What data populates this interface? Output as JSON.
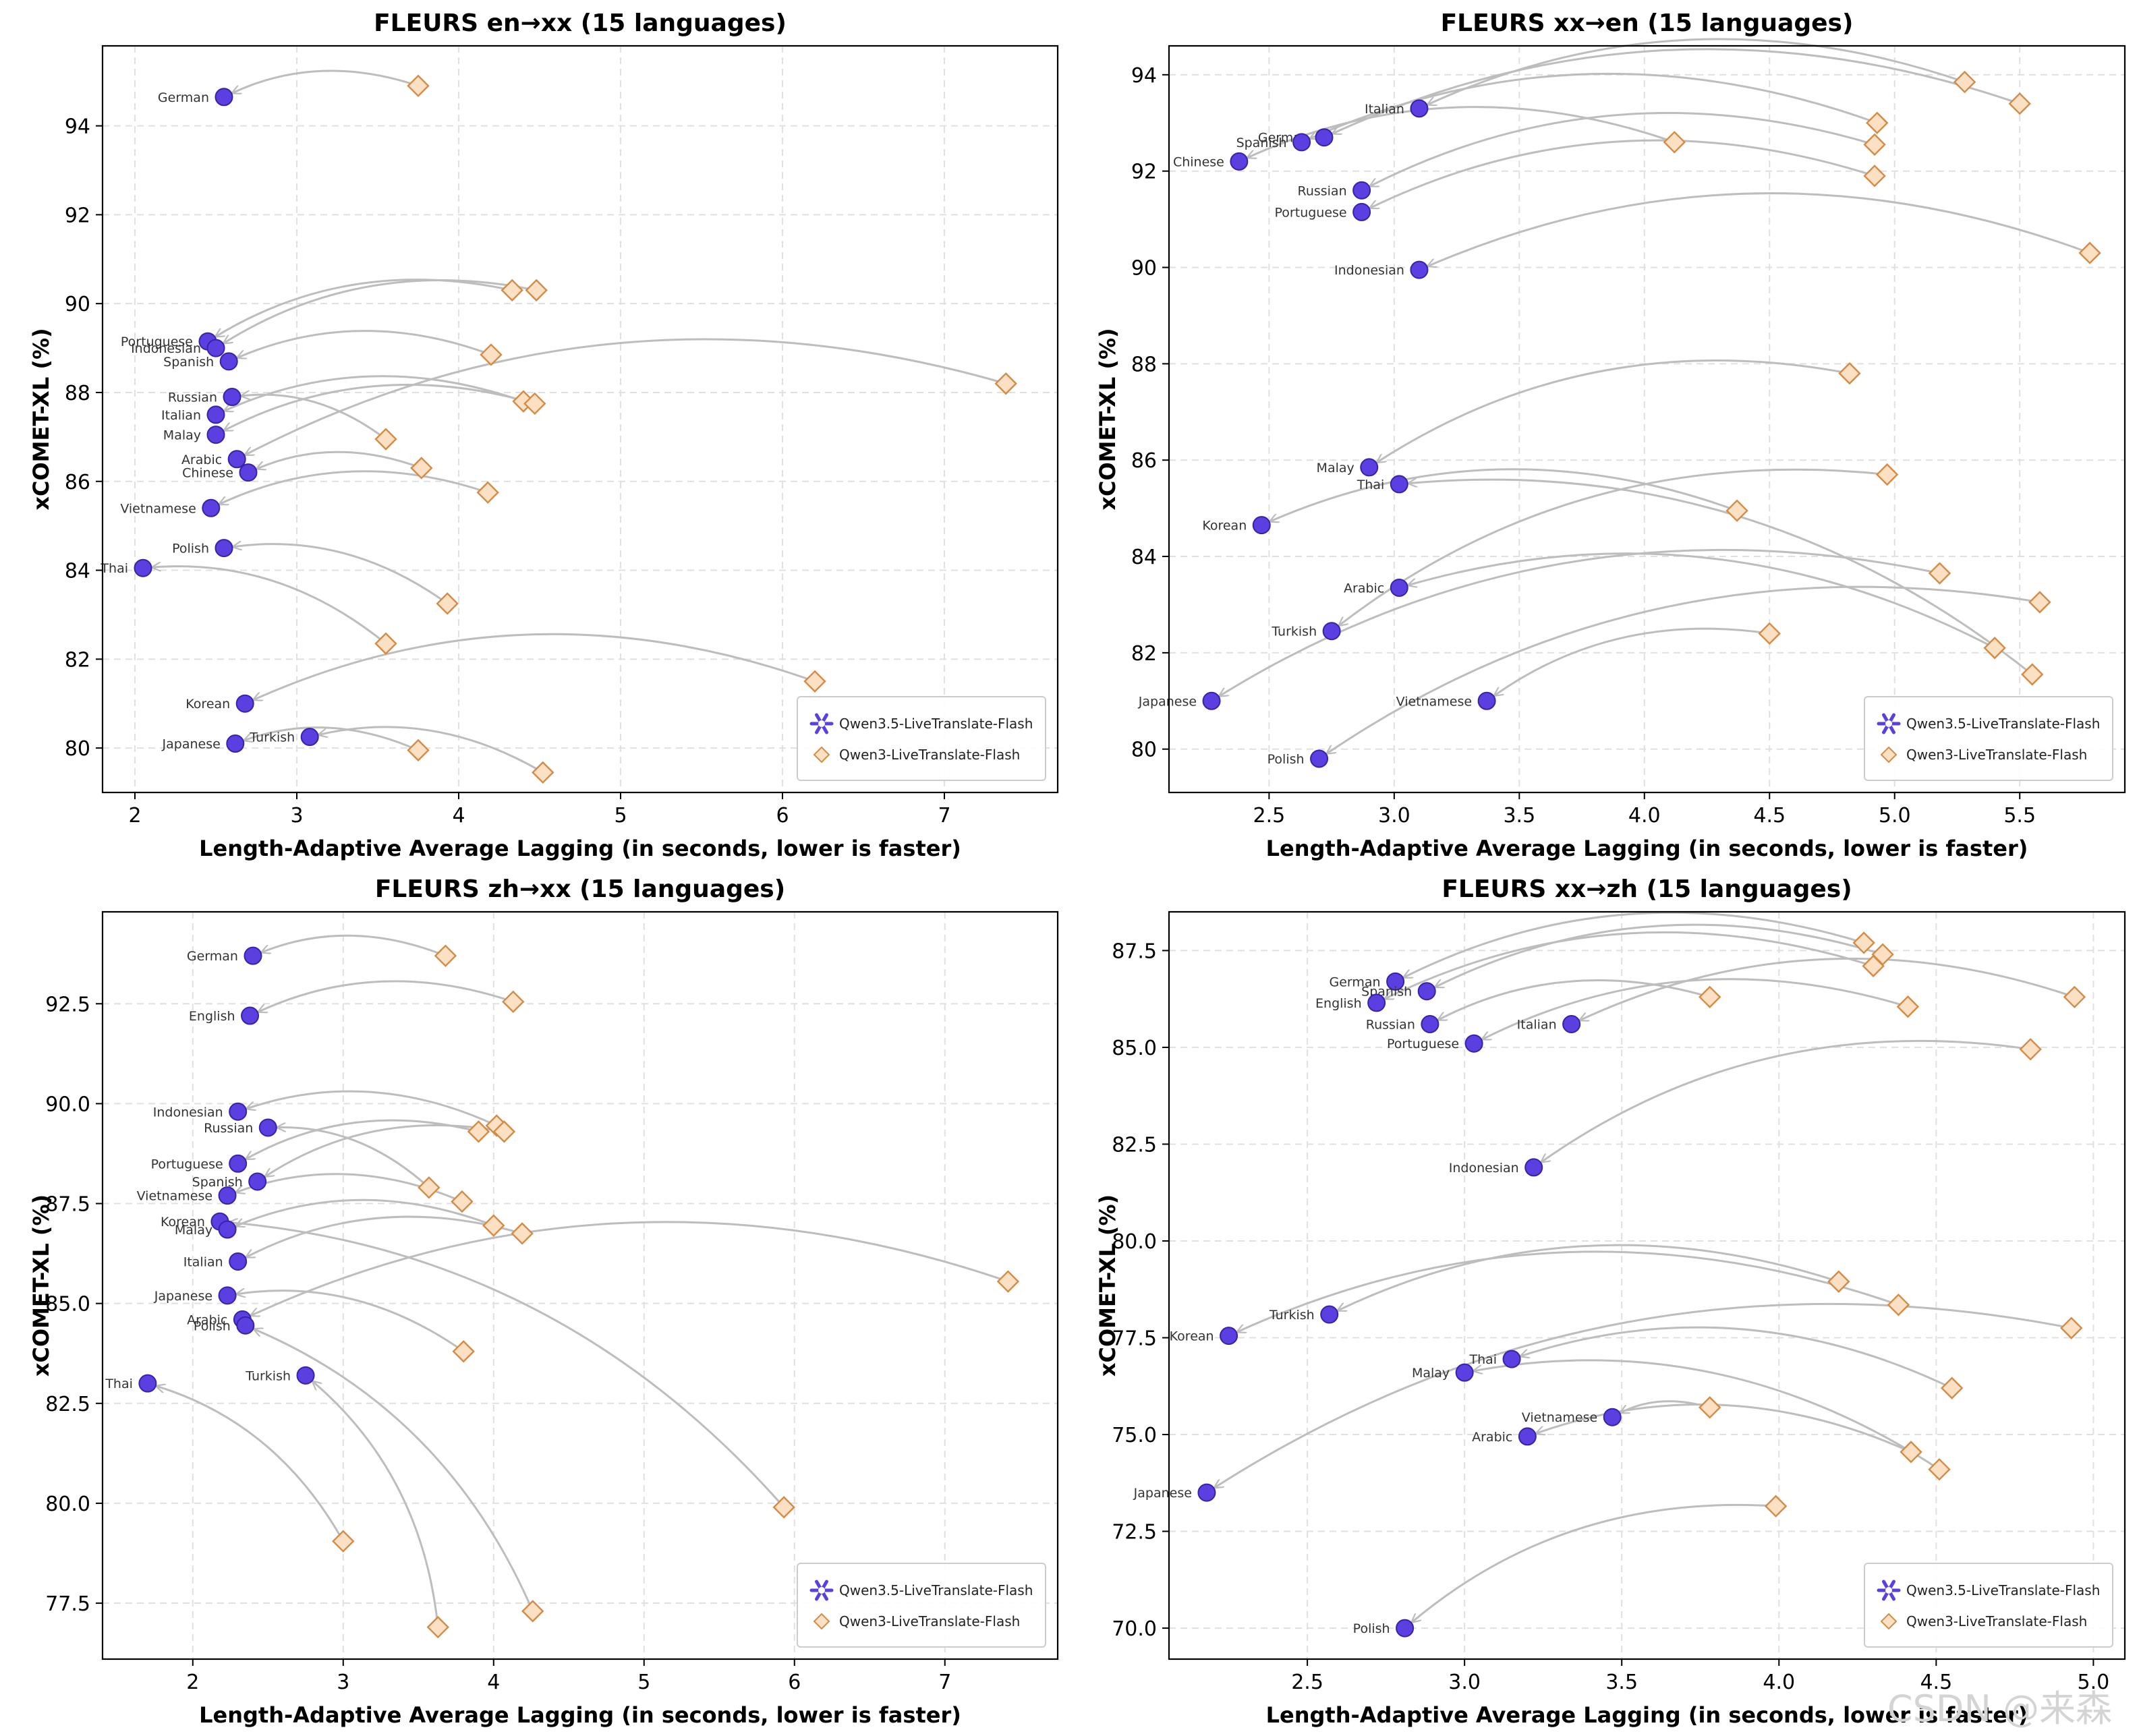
{
  "watermark": "CSDN @来森",
  "legend": {
    "new_model": "Qwen3.5-LiveTranslate-Flash",
    "old_model": "Qwen3-LiveTranslate-Flash"
  },
  "colors": {
    "new_model": "#5b3fe0",
    "new_model_edge": "#3a22a8",
    "old_model_fill": "#fbe0c4",
    "old_model_edge": "#d38b45",
    "arrow": "#bdbdbd",
    "grid": "#e0e0e0"
  },
  "chart_data": [
    {
      "type": "scatter",
      "title": "FLEURS en→xx  (15 languages)",
      "xlabel": "Length-Adaptive Average Lagging (in seconds, lower is faster)",
      "ylabel": "xCOMET-XL (%)",
      "xlim": [
        1.8,
        7.7
      ],
      "ylim": [
        79.0,
        95.8
      ],
      "xticks": [
        2,
        3,
        4,
        5,
        6,
        7
      ],
      "xtick_labels": [
        "2",
        "3",
        "4",
        "5",
        "6",
        "7"
      ],
      "yticks": [
        80,
        82,
        84,
        86,
        88,
        90,
        92,
        94
      ],
      "ytick_labels": [
        "80",
        "82",
        "84",
        "86",
        "88",
        "90",
        "92",
        "94"
      ],
      "grid": true,
      "legend_position": "lower-right",
      "points": [
        {
          "language": "German",
          "qwen3": [
            3.75,
            94.9
          ],
          "qwen35": [
            2.55,
            94.65
          ]
        },
        {
          "language": "Portuguese",
          "qwen3": [
            4.33,
            90.3
          ],
          "qwen35": [
            2.45,
            89.15
          ]
        },
        {
          "language": "Indonesian",
          "qwen3": [
            4.48,
            90.3
          ],
          "qwen35": [
            2.5,
            89.0
          ]
        },
        {
          "language": "Spanish",
          "qwen3": [
            4.2,
            88.85
          ],
          "qwen35": [
            2.58,
            88.7
          ]
        },
        {
          "language": "Russian",
          "qwen3": [
            3.55,
            86.95
          ],
          "qwen35": [
            2.6,
            87.9
          ]
        },
        {
          "language": "Italian",
          "qwen3": [
            4.4,
            87.8
          ],
          "qwen35": [
            2.5,
            87.5
          ]
        },
        {
          "language": "Malay",
          "qwen3": [
            4.47,
            87.75
          ],
          "qwen35": [
            2.5,
            87.05
          ]
        },
        {
          "language": "Arabic",
          "qwen3": [
            7.38,
            88.2
          ],
          "qwen35": [
            2.63,
            86.5
          ]
        },
        {
          "language": "Chinese",
          "qwen3": [
            3.77,
            86.3
          ],
          "qwen35": [
            2.7,
            86.2
          ]
        },
        {
          "language": "Vietnamese",
          "qwen3": [
            4.18,
            85.75
          ],
          "qwen35": [
            2.47,
            85.4
          ]
        },
        {
          "language": "Polish",
          "qwen3": [
            3.93,
            83.25
          ],
          "qwen35": [
            2.55,
            84.5
          ]
        },
        {
          "language": "Thai",
          "qwen3": [
            3.55,
            82.35
          ],
          "qwen35": [
            2.05,
            84.05
          ]
        },
        {
          "language": "Korean",
          "qwen3": [
            6.2,
            81.5
          ],
          "qwen35": [
            2.68,
            81.0
          ]
        },
        {
          "language": "Turkish",
          "qwen3": [
            4.52,
            79.45
          ],
          "qwen35": [
            3.08,
            80.25
          ]
        },
        {
          "language": "Japanese",
          "qwen3": [
            3.75,
            79.95
          ],
          "qwen35": [
            2.62,
            80.1
          ]
        }
      ]
    },
    {
      "type": "scatter",
      "title": "FLEURS xx→en  (15 languages)",
      "xlabel": "Length-Adaptive Average Lagging (in seconds, lower is faster)",
      "ylabel": "xCOMET-XL (%)",
      "xlim": [
        2.1,
        5.92
      ],
      "ylim": [
        79.1,
        94.6
      ],
      "xticks": [
        2.5,
        3.0,
        3.5,
        4.0,
        4.5,
        5.0,
        5.5
      ],
      "xtick_labels": [
        "2.5",
        "3.0",
        "3.5",
        "4.0",
        "4.5",
        "5.0",
        "5.5"
      ],
      "yticks": [
        80,
        82,
        84,
        86,
        88,
        90,
        92,
        94
      ],
      "ytick_labels": [
        "80",
        "82",
        "84",
        "86",
        "88",
        "90",
        "92",
        "94"
      ],
      "grid": true,
      "legend_position": "lower-right",
      "points": [
        {
          "language": "Italian",
          "qwen3": [
            5.28,
            93.85
          ],
          "qwen35": [
            3.1,
            93.3
          ]
        },
        {
          "language": "German",
          "qwen3": [
            5.5,
            93.4
          ],
          "qwen35": [
            2.72,
            92.7
          ]
        },
        {
          "language": "Spanish",
          "qwen3": [
            4.93,
            93.0
          ],
          "qwen35": [
            2.63,
            92.6
          ]
        },
        {
          "language": "Chinese",
          "qwen3": [
            4.12,
            92.6
          ],
          "qwen35": [
            2.38,
            92.2
          ]
        },
        {
          "language": "Russian",
          "qwen3": [
            4.92,
            92.55
          ],
          "qwen35": [
            2.87,
            91.6
          ]
        },
        {
          "language": "Portuguese",
          "qwen3": [
            4.92,
            91.9
          ],
          "qwen35": [
            2.87,
            91.15
          ]
        },
        {
          "language": "Indonesian",
          "qwen3": [
            5.78,
            90.3
          ],
          "qwen35": [
            3.1,
            89.95
          ]
        },
        {
          "language": "Malay",
          "qwen3": [
            4.82,
            87.8
          ],
          "qwen35": [
            2.9,
            85.85
          ]
        },
        {
          "language": "Thai",
          "qwen3": [
            5.55,
            81.55
          ],
          "qwen35": [
            3.02,
            85.5
          ]
        },
        {
          "language": "Korean",
          "qwen3": [
            4.37,
            84.95
          ],
          "qwen35": [
            2.47,
            84.65
          ]
        },
        {
          "language": "Arabic",
          "qwen3": [
            5.4,
            82.1
          ],
          "qwen35": [
            3.02,
            83.35
          ]
        },
        {
          "language": "Turkish",
          "qwen3": [
            4.97,
            85.7
          ],
          "qwen35": [
            2.75,
            82.45
          ]
        },
        {
          "language": "Japanese",
          "qwen3": [
            5.18,
            83.65
          ],
          "qwen35": [
            2.27,
            81.0
          ]
        },
        {
          "language": "Vietnamese",
          "qwen3": [
            4.5,
            82.4
          ],
          "qwen35": [
            3.37,
            81.0
          ]
        },
        {
          "language": "Polish",
          "qwen3": [
            5.58,
            83.05
          ],
          "qwen35": [
            2.7,
            79.8
          ]
        }
      ]
    },
    {
      "type": "scatter",
      "title": "FLEURS zh→xx  (15 languages)",
      "xlabel": "Length-Adaptive Average Lagging (in seconds, lower is faster)",
      "ylabel": "xCOMET-XL (%)",
      "xlim": [
        1.4,
        7.75
      ],
      "ylim": [
        76.1,
        94.8
      ],
      "xticks": [
        2,
        3,
        4,
        5,
        6,
        7
      ],
      "xtick_labels": [
        "2",
        "3",
        "4",
        "5",
        "6",
        "7"
      ],
      "yticks": [
        77.5,
        80.0,
        82.5,
        85.0,
        87.5,
        90.0,
        92.5
      ],
      "ytick_labels": [
        "77.5",
        "80.0",
        "82.5",
        "85.0",
        "87.5",
        "90.0",
        "92.5"
      ],
      "grid": true,
      "legend_position": "lower-right",
      "points": [
        {
          "language": "German",
          "qwen3": [
            3.68,
            93.7
          ],
          "qwen35": [
            2.4,
            93.7
          ]
        },
        {
          "language": "English",
          "qwen3": [
            4.13,
            92.55
          ],
          "qwen35": [
            2.38,
            92.2
          ]
        },
        {
          "language": "Indonesian",
          "qwen3": [
            4.02,
            89.45
          ],
          "qwen35": [
            2.3,
            89.8
          ]
        },
        {
          "language": "Russian",
          "qwen3": [
            3.57,
            87.9
          ],
          "qwen35": [
            2.5,
            89.4
          ]
        },
        {
          "language": "Portuguese",
          "qwen3": [
            3.9,
            89.3
          ],
          "qwen35": [
            2.3,
            88.5
          ]
        },
        {
          "language": "Spanish",
          "qwen3": [
            4.07,
            89.3
          ],
          "qwen35": [
            2.43,
            88.05
          ]
        },
        {
          "language": "Vietnamese",
          "qwen3": [
            3.79,
            87.55
          ],
          "qwen35": [
            2.23,
            87.7
          ]
        },
        {
          "language": "Korean",
          "qwen3": [
            5.93,
            79.9
          ],
          "qwen35": [
            2.18,
            87.05
          ]
        },
        {
          "language": "Malay",
          "qwen3": [
            4.0,
            86.95
          ],
          "qwen35": [
            2.23,
            86.85
          ]
        },
        {
          "language": "Italian",
          "qwen3": [
            4.19,
            86.75
          ],
          "qwen35": [
            2.3,
            86.05
          ]
        },
        {
          "language": "Japanese",
          "qwen3": [
            3.8,
            83.8
          ],
          "qwen35": [
            2.23,
            85.2
          ]
        },
        {
          "language": "Arabic",
          "qwen3": [
            7.42,
            85.55
          ],
          "qwen35": [
            2.33,
            84.6
          ]
        },
        {
          "language": "Polish",
          "qwen3": [
            4.26,
            77.3
          ],
          "qwen35": [
            2.35,
            84.45
          ]
        },
        {
          "language": "Turkish",
          "qwen3": [
            3.63,
            76.9
          ],
          "qwen35": [
            2.75,
            83.2
          ]
        },
        {
          "language": "Thai",
          "qwen3": [
            3.0,
            79.05
          ],
          "qwen35": [
            1.7,
            83.0
          ]
        }
      ]
    },
    {
      "type": "scatter",
      "title": "FLEURS xx→zh  (15 languages)",
      "xlabel": "Length-Adaptive Average Lagging (in seconds, lower is faster)",
      "ylabel": "xCOMET-XL (%)",
      "xlim": [
        2.06,
        5.1
      ],
      "ylim": [
        69.2,
        88.5
      ],
      "xticks": [
        2.5,
        3.0,
        3.5,
        4.0,
        4.5,
        5.0
      ],
      "xtick_labels": [
        "2.5",
        "3.0",
        "3.5",
        "4.0",
        "4.5",
        "5.0"
      ],
      "yticks": [
        70.0,
        72.5,
        75.0,
        77.5,
        80.0,
        82.5,
        85.0,
        87.5
      ],
      "ytick_labels": [
        "70.0",
        "72.5",
        "75.0",
        "77.5",
        "80.0",
        "82.5",
        "85.0",
        "87.5"
      ],
      "grid": true,
      "legend_position": "lower-right",
      "points": [
        {
          "language": "German",
          "qwen3": [
            4.27,
            87.7
          ],
          "qwen35": [
            2.78,
            86.7
          ]
        },
        {
          "language": "Spanish",
          "qwen3": [
            4.33,
            87.4
          ],
          "qwen35": [
            2.88,
            86.45
          ]
        },
        {
          "language": "English",
          "qwen3": [
            4.3,
            87.1
          ],
          "qwen35": [
            2.72,
            86.15
          ]
        },
        {
          "language": "Russian",
          "qwen3": [
            3.78,
            86.3
          ],
          "qwen35": [
            2.89,
            85.6
          ]
        },
        {
          "language": "Italian",
          "qwen3": [
            4.94,
            86.3
          ],
          "qwen35": [
            3.34,
            85.6
          ]
        },
        {
          "language": "Portuguese",
          "qwen3": [
            4.41,
            86.05
          ],
          "qwen35": [
            3.03,
            85.1
          ]
        },
        {
          "language": "Indonesian",
          "qwen3": [
            4.8,
            84.95
          ],
          "qwen35": [
            3.22,
            81.9
          ]
        },
        {
          "language": "Turkish",
          "qwen3": [
            4.19,
            78.95
          ],
          "qwen35": [
            2.57,
            78.1
          ]
        },
        {
          "language": "Korean",
          "qwen3": [
            4.38,
            78.35
          ],
          "qwen35": [
            2.25,
            77.55
          ]
        },
        {
          "language": "Thai",
          "qwen3": [
            4.55,
            76.2
          ],
          "qwen35": [
            3.15,
            76.95
          ]
        },
        {
          "language": "Malay",
          "qwen3": [
            4.51,
            74.1
          ],
          "qwen35": [
            3.0,
            76.6
          ]
        },
        {
          "language": "Vietnamese",
          "qwen3": [
            3.78,
            75.7
          ],
          "qwen35": [
            3.47,
            75.45
          ]
        },
        {
          "language": "Arabic",
          "qwen3": [
            4.42,
            74.55
          ],
          "qwen35": [
            3.2,
            74.95
          ]
        },
        {
          "language": "Japanese",
          "qwen3": [
            4.93,
            77.75
          ],
          "qwen35": [
            2.18,
            73.5
          ]
        },
        {
          "language": "Polish",
          "qwen3": [
            3.99,
            73.15
          ],
          "qwen35": [
            2.81,
            70.0
          ]
        }
      ]
    }
  ]
}
